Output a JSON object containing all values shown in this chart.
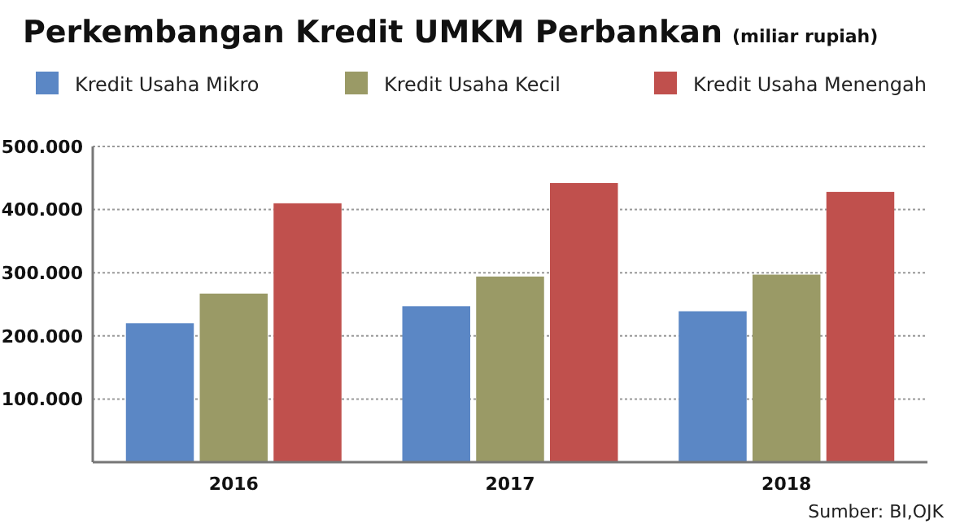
{
  "chart_data": {
    "type": "bar",
    "title": "Perkembangan Kredit UMKM Perbankan",
    "subtitle": "(miliar rupiah)",
    "categories": [
      "2016",
      "2017",
      "2018"
    ],
    "series": [
      {
        "name": "Kredit Usaha Mikro",
        "color": "#5b87c5",
        "values": [
          220000,
          247000,
          239000
        ]
      },
      {
        "name": "Kredit Usaha Kecil",
        "color": "#9a9a66",
        "values": [
          267000,
          294000,
          297000
        ]
      },
      {
        "name": "Kredit Usaha Menengah",
        "color": "#c0504d",
        "values": [
          410000,
          442000,
          428000
        ]
      }
    ],
    "ylim": [
      0,
      500000
    ],
    "yticks": [
      {
        "value": 100000,
        "label": "100.000"
      },
      {
        "value": 200000,
        "label": "200.000"
      },
      {
        "value": 300000,
        "label": "300.000"
      },
      {
        "value": 400000,
        "label": "400.000"
      },
      {
        "value": 500000,
        "label": "500.000"
      }
    ],
    "grid": "y",
    "legend": "top",
    "annotations": [
      "Sumber: BI,OJK"
    ]
  }
}
